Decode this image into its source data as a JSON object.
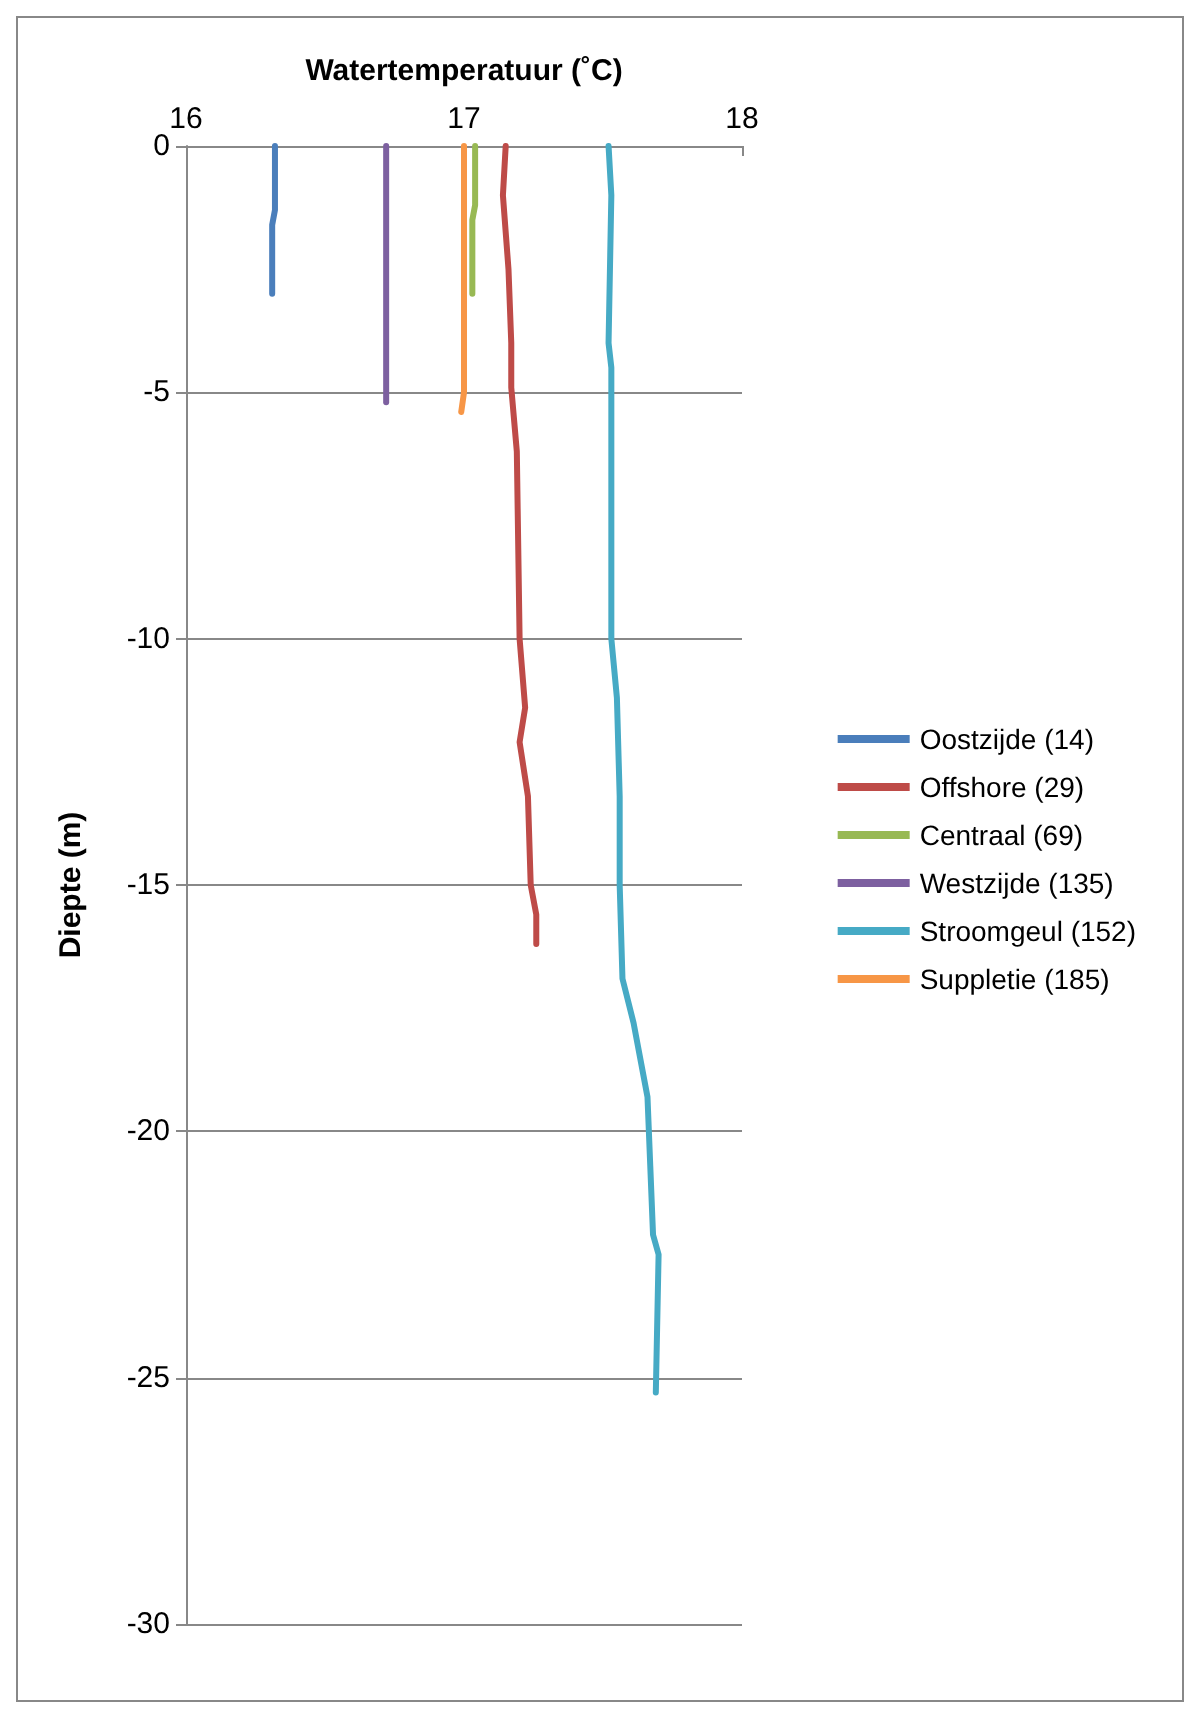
{
  "chart_data": {
    "type": "line",
    "xlabel": "Watertemperatuur (˚C)",
    "ylabel": "Diepte (m)",
    "xlim": [
      16,
      18
    ],
    "xticks": [
      16,
      17,
      18
    ],
    "ylim": [
      -30,
      0
    ],
    "yticks": [
      -30,
      -25,
      -20,
      -15,
      -10,
      -5,
      0
    ],
    "grid": "y",
    "legend": "right",
    "marker": "none",
    "line_style": "solid",
    "series": [
      {
        "name": "Oostzijde (14)",
        "color": "#4a7ebb",
        "x": [
          16.32,
          16.32,
          16.31,
          16.31
        ],
        "values": [
          0,
          -1.3,
          -1.6,
          -3.0
        ]
      },
      {
        "name": "Offshore (29)",
        "color": "#be4b48",
        "x": [
          17.15,
          17.14,
          17.16,
          17.17,
          17.17,
          17.19,
          17.2,
          17.22,
          17.2,
          17.23,
          17.24,
          17.26,
          17.26
        ],
        "values": [
          0,
          -1,
          -2.5,
          -4,
          -4.9,
          -6.2,
          -10,
          -11.4,
          -12.1,
          -13.2,
          -15,
          -15.6,
          -16.2
        ]
      },
      {
        "name": "Centraal (69)",
        "color": "#98b954",
        "x": [
          17.04,
          17.04,
          17.03,
          17.03
        ],
        "values": [
          0,
          -1.2,
          -1.5,
          -3.0
        ]
      },
      {
        "name": "Westzijde (135)",
        "color": "#7d60a0",
        "x": [
          16.72,
          16.72
        ],
        "values": [
          0,
          -5.2
        ]
      },
      {
        "name": "Stroomgeul (152)",
        "color": "#46aac5",
        "x": [
          17.52,
          17.53,
          17.52,
          17.53,
          17.53,
          17.55,
          17.56,
          17.56,
          17.57,
          17.61,
          17.66,
          17.67,
          17.68,
          17.7,
          17.69
        ],
        "values": [
          0,
          -1,
          -4,
          -4.5,
          -10,
          -11.2,
          -13.2,
          -15,
          -16.9,
          -17.8,
          -19.3,
          -20.7,
          -22.1,
          -22.5,
          -25.3
        ]
      },
      {
        "name": "Suppletie (185)",
        "color": "#f79646",
        "x": [
          17.0,
          17.0,
          16.99
        ],
        "values": [
          0,
          -5.0,
          -5.4
        ]
      }
    ]
  }
}
